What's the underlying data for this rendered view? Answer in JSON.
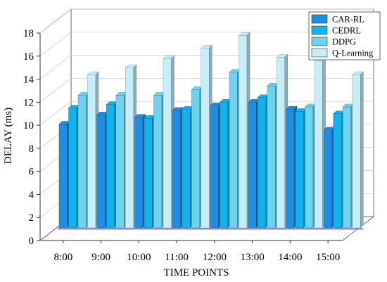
{
  "chart_data": {
    "type": "bar",
    "categories": [
      "8:00",
      "9:00",
      "10:00",
      "11:00",
      "12:00",
      "13:00",
      "14:00",
      "15:00"
    ],
    "series": [
      {
        "name": "CAR-RL",
        "values": [
          9.0,
          9.8,
          9.6,
          10.2,
          10.6,
          10.9,
          10.3,
          8.5
        ],
        "color": "#1f8ee0"
      },
      {
        "name": "CEDRL",
        "values": [
          10.4,
          10.7,
          9.5,
          10.3,
          10.9,
          11.3,
          10.1,
          9.9
        ],
        "color": "#12b3ec"
      },
      {
        "name": "DDPG",
        "values": [
          11.5,
          11.5,
          11.5,
          12.0,
          13.5,
          12.3,
          10.5,
          10.5
        ],
        "color": "#6dd3ee"
      },
      {
        "name": "Q-Learning",
        "values": [
          13.3,
          13.9,
          14.7,
          15.6,
          16.7,
          14.8,
          14.5,
          13.3
        ],
        "color": "#c6eef8"
      }
    ],
    "xlabel": "TIME POINTS",
    "ylabel": "DELAY (ms)",
    "ylim": [
      0,
      18
    ],
    "yticks": [
      0,
      2,
      4,
      6,
      8,
      10,
      12,
      14,
      16,
      18
    ],
    "grid": true,
    "legend_position": "top-right"
  }
}
